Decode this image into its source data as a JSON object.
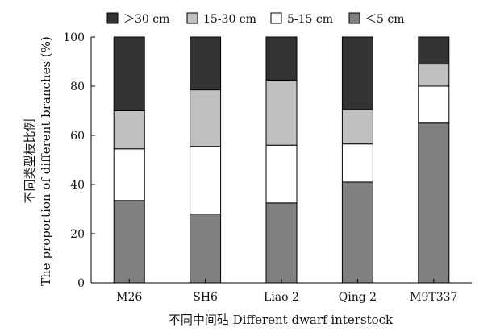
{
  "chart_data": {
    "type": "bar",
    "stacked": true,
    "xlabel": "不同中间砧 Different dwarf interstock",
    "ylabel_line1": "不同类型枝比例",
    "ylabel_line2": "The proportion of different branches (%)",
    "ylim": [
      0,
      100
    ],
    "yticks": [
      0,
      20,
      40,
      60,
      80,
      100
    ],
    "grid": false,
    "legend_position": "top",
    "categories": [
      "M26",
      "SH6",
      "Liao 2",
      "Qing 2",
      "M9T337"
    ],
    "series": [
      {
        "name": "＜5 cm",
        "color": "#808080",
        "values": [
          33.5,
          28,
          32.5,
          41,
          65
        ]
      },
      {
        "name": "5-15 cm",
        "color": "#ffffff",
        "values": [
          21,
          27.5,
          23.5,
          15.5,
          15
        ]
      },
      {
        "name": "15-30 cm",
        "color": "#c0c0c0",
        "values": [
          15.5,
          23,
          26.5,
          14,
          9
        ]
      },
      {
        "name": "＞30 cm",
        "color": "#333333",
        "values": [
          30,
          21.5,
          17.5,
          29.5,
          11
        ]
      }
    ],
    "legend_order": [
      3,
      2,
      1,
      0
    ]
  }
}
